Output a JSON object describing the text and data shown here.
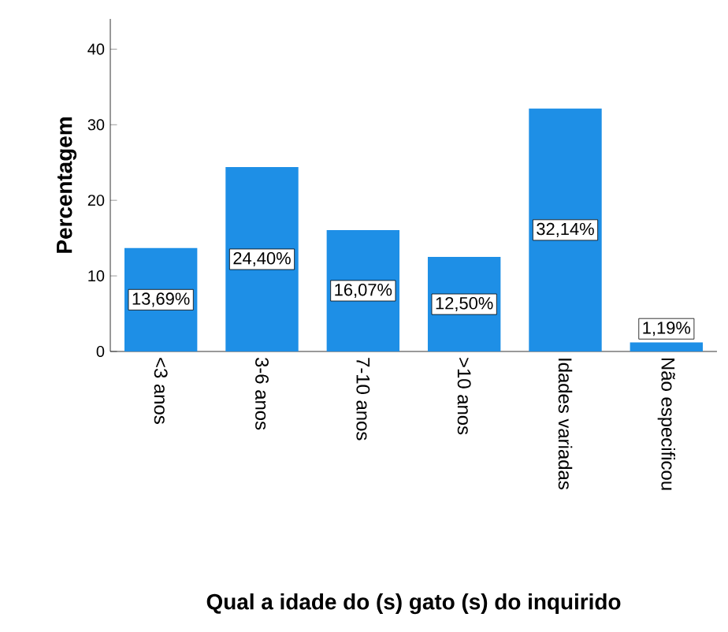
{
  "chart_data": {
    "type": "bar",
    "xlabel": "Qual a idade do (s) gato (s) do inquirido",
    "ylabel": "Percentagem",
    "categories": [
      "<3 anos",
      "3-6 anos",
      "7-10 anos",
      ">10 anos",
      "Idades variadas",
      "Não especificou"
    ],
    "values": [
      13.69,
      24.4,
      16.07,
      12.5,
      32.14,
      1.19
    ],
    "value_labels": [
      "13,69%",
      "24,40%",
      "16,07%",
      "12,50%",
      "32,14%",
      "1,19%"
    ],
    "color": "#1e8fe6",
    "ylim": [
      0,
      44
    ],
    "yticks": [
      0,
      10,
      20,
      30,
      40
    ]
  }
}
